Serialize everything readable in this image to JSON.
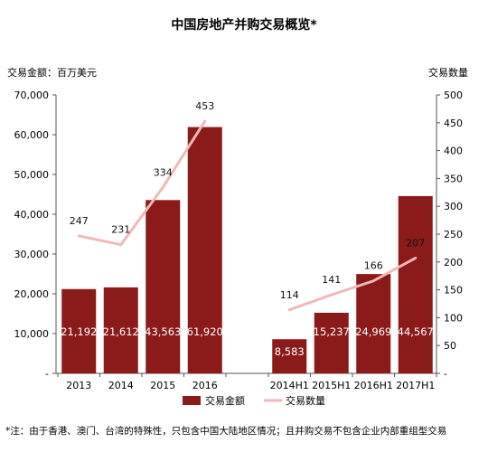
{
  "chart_data": {
    "type": "bar",
    "title": "中国房地产并购交易概览*",
    "ylabel_left": "交易金额：百万美元",
    "ylabel_right": "交易数量",
    "ylim_left": [
      0,
      70000
    ],
    "ylim_right": [
      0,
      500
    ],
    "left_ticks": [
      "-",
      "10,000",
      "20,000",
      "30,000",
      "40,000",
      "50,000",
      "60,000",
      "70,000"
    ],
    "right_ticks": [
      "-",
      "50",
      "100",
      "150",
      "200",
      "250",
      "300",
      "350",
      "400",
      "450",
      "500"
    ],
    "groups": [
      {
        "categories": [
          "2013",
          "2014",
          "2015",
          "2016"
        ],
        "amount_values": [
          21192,
          21612,
          43563,
          61920
        ],
        "amount_labels": [
          "21,192",
          "21,612",
          "43,563",
          "61,920"
        ],
        "count_values": [
          247,
          231,
          334,
          453
        ],
        "count_labels": [
          "247",
          "231",
          "334",
          "453"
        ]
      },
      {
        "categories": [
          "2014H1",
          "2015H1",
          "2016H1",
          "2017H1"
        ],
        "amount_values": [
          8583,
          15237,
          24969,
          44567
        ],
        "amount_labels": [
          "8,583",
          "15,237",
          "24,969",
          "44,567"
        ],
        "count_values": [
          114,
          141,
          166,
          207
        ],
        "count_labels": [
          "114",
          "141",
          "166",
          "207"
        ]
      }
    ],
    "series": [
      {
        "name": "交易金额",
        "type": "bar",
        "color": "#8b1a1a"
      },
      {
        "name": "交易数量",
        "type": "line",
        "color": "#f2b8b8"
      }
    ],
    "legend_position": "bottom",
    "grid": false
  },
  "footnote": "*注：由于香港、澳门、台湾的特殊性，只包含中国大陆地区情况；且并购交易不包含企业内部重组型交易"
}
